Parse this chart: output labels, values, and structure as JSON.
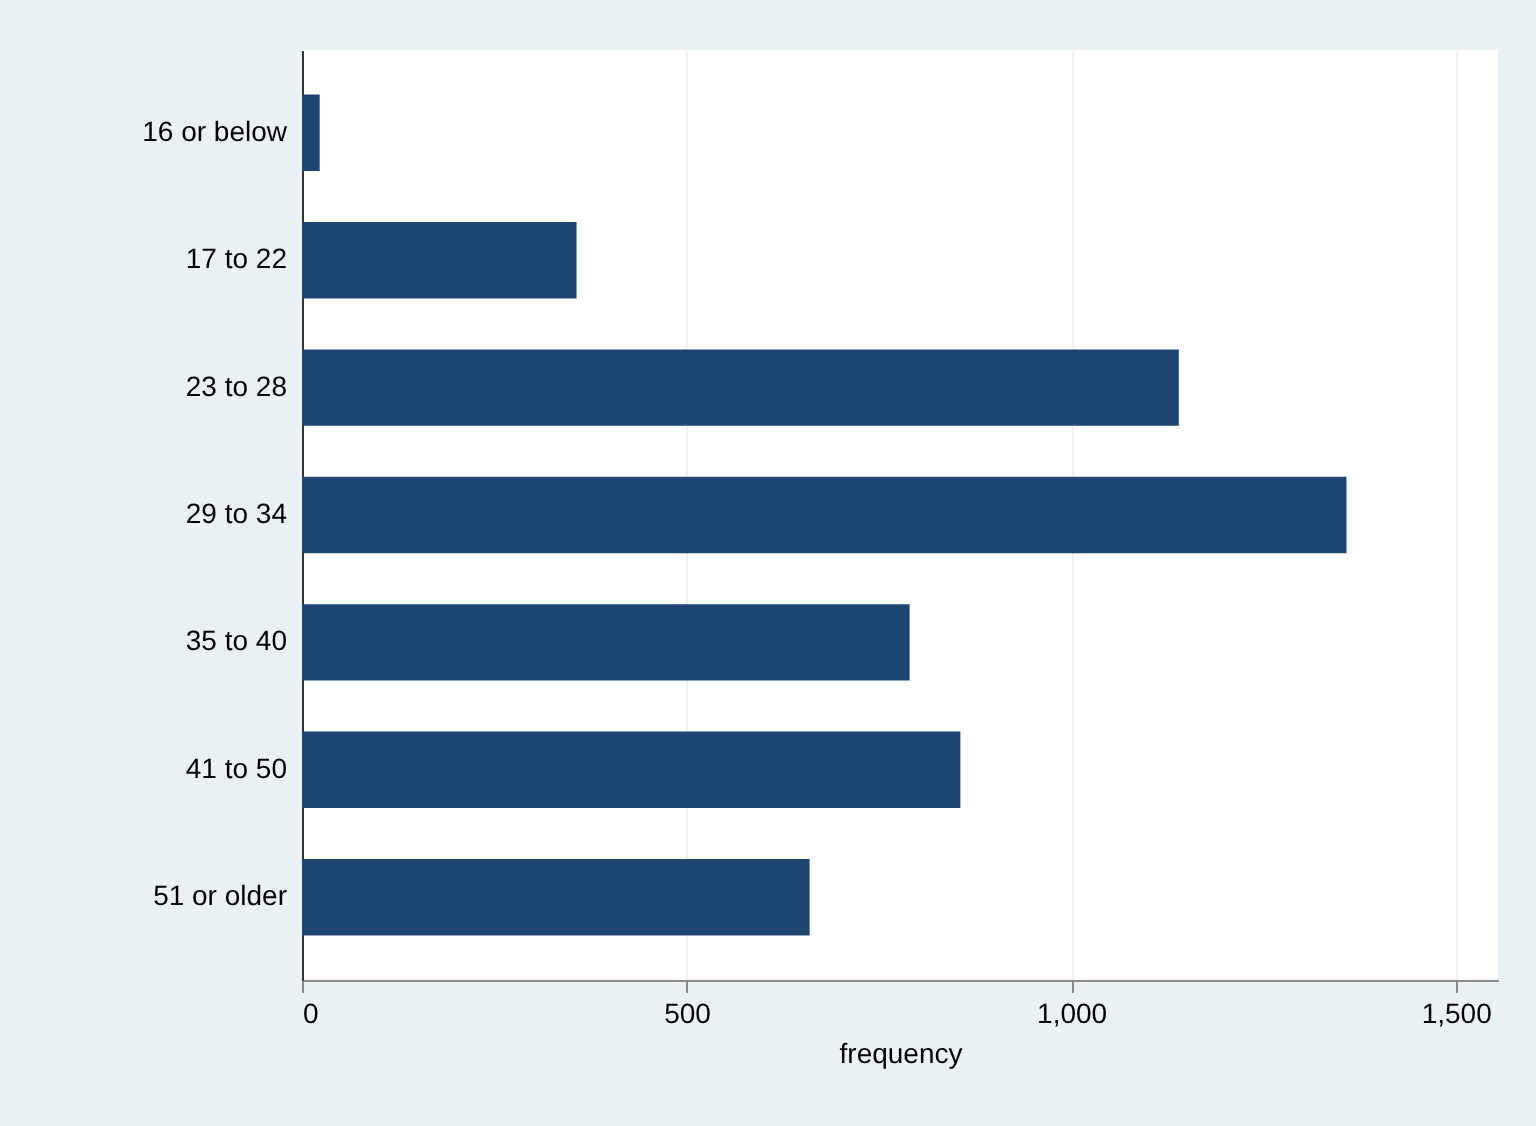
{
  "chart_data": {
    "type": "bar",
    "orientation": "horizontal",
    "xlabel": "frequency",
    "categories": [
      "16 or below",
      "17 to 22",
      "23 to 28",
      "29 to 34",
      "35 to 40",
      "41 to 50",
      "51 or older"
    ],
    "values": [
      23,
      357,
      1140,
      1358,
      790,
      856,
      660
    ],
    "color": "#1c4670",
    "xlim": [
      0,
      1555
    ],
    "xticks": [
      0,
      500,
      {
        "value": 1000,
        "label": "1,000"
      },
      {
        "value": 1500,
        "label": "1,500"
      }
    ],
    "grid": "x"
  }
}
